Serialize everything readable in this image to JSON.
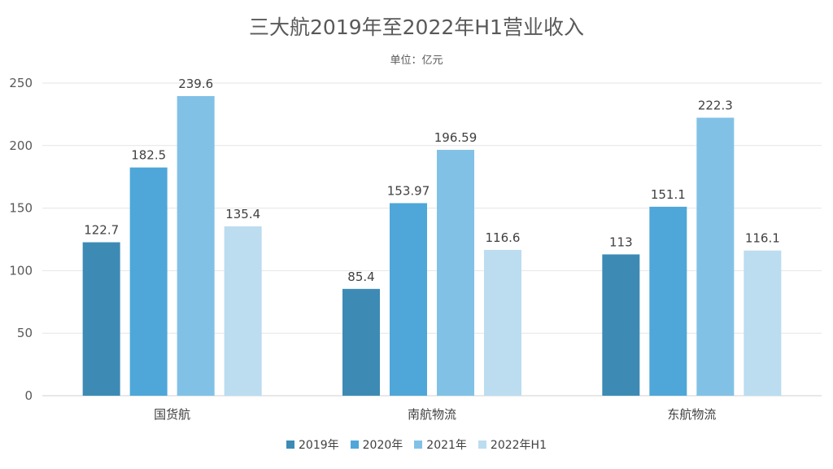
{
  "chart_data": {
    "type": "bar",
    "title": "三大航2019年至2022年H1营业收入",
    "subtitle": "单位：亿元",
    "categories": [
      "国货航",
      "南航物流",
      "东航物流"
    ],
    "series": [
      {
        "name": "2019年",
        "values": [
          122.7,
          85.4,
          113
        ],
        "labels": [
          "122.7",
          "85.4",
          "113"
        ],
        "color": "#3d8bb5"
      },
      {
        "name": "2020年",
        "values": [
          182.5,
          153.97,
          151.1
        ],
        "labels": [
          "182.5",
          "153.97",
          "151.1"
        ],
        "color": "#4ea7d8"
      },
      {
        "name": "2021年",
        "values": [
          239.6,
          196.59,
          222.3
        ],
        "labels": [
          "239.6",
          "196.59",
          "222.3"
        ],
        "color": "#82c1e6"
      },
      {
        "name": "2022年H1",
        "values": [
          135.4,
          116.6,
          116.1
        ],
        "labels": [
          "135.4",
          "116.6",
          "116.1"
        ],
        "color": "#bcdcf0"
      }
    ],
    "ylim": [
      0,
      250
    ],
    "yticks": [
      "0",
      "50",
      "100",
      "150",
      "200",
      "250"
    ],
    "grid": true,
    "legend_position": "bottom"
  }
}
